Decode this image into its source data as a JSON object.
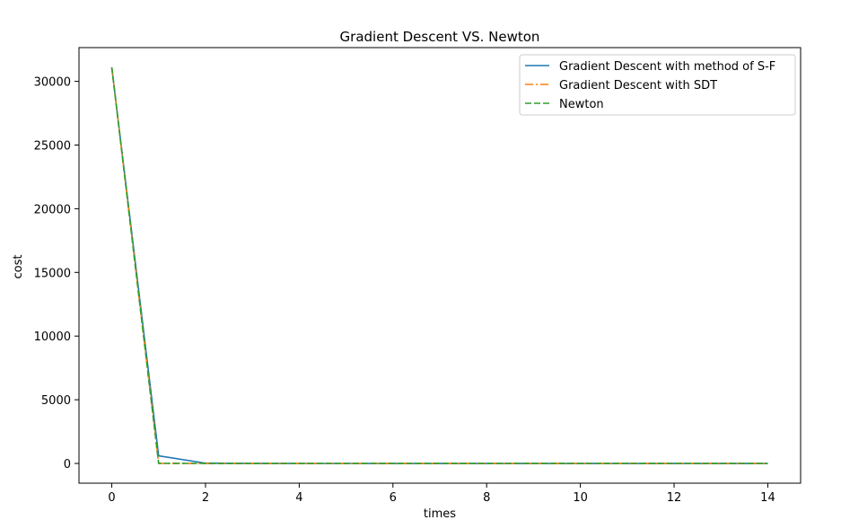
{
  "chart_data": {
    "type": "line",
    "title": "Gradient Descent VS. Newton",
    "xlabel": "times",
    "ylabel": "cost",
    "xlim": [
      -0.7,
      14.7
    ],
    "ylim": [
      -1550,
      32650
    ],
    "xticks": [
      0,
      2,
      4,
      6,
      8,
      10,
      12,
      14
    ],
    "yticks": [
      0,
      5000,
      10000,
      15000,
      20000,
      25000,
      30000
    ],
    "x": [
      0,
      1,
      2,
      3,
      4,
      5,
      6,
      7,
      8,
      9,
      10,
      11,
      12,
      13,
      14
    ],
    "series": [
      {
        "name": "Gradient Descent with method of S-F",
        "color": "#1f77b4",
        "dash": "solid",
        "values": [
          31100,
          600,
          20,
          5,
          2,
          1,
          0,
          0,
          0,
          0,
          0,
          0,
          0,
          0,
          0
        ]
      },
      {
        "name": "Gradient Descent with SDT",
        "color": "#ff7f0e",
        "dash": "dashdot",
        "values": [
          31100,
          10,
          0,
          0,
          0,
          0,
          0,
          0,
          0,
          0,
          0,
          0,
          0,
          0,
          0
        ]
      },
      {
        "name": "Newton",
        "color": "#2ca02c",
        "dash": "dashed",
        "values": [
          31100,
          5,
          0,
          0,
          0,
          0,
          0,
          0,
          0,
          0,
          0,
          0,
          0,
          0,
          0
        ]
      }
    ],
    "grid": false,
    "legend_position": "upper-right"
  }
}
